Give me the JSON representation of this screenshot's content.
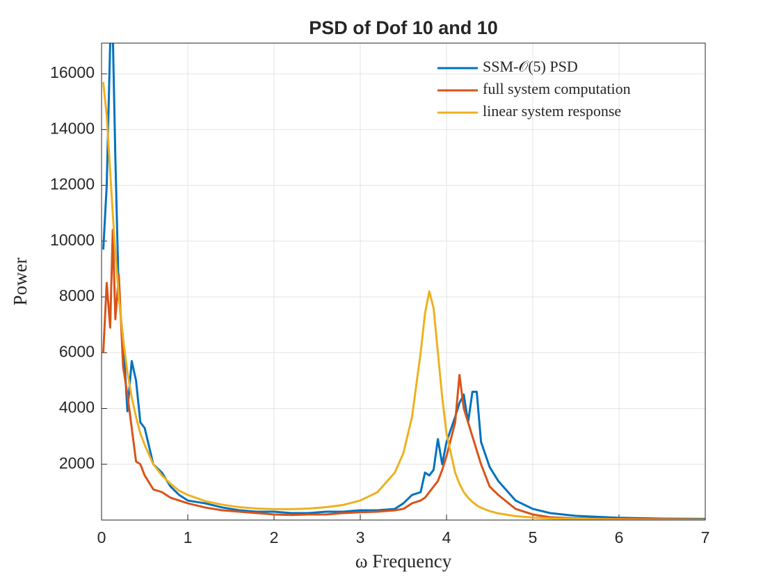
{
  "chart_data": {
    "type": "line",
    "title": "PSD of Dof 10 and 10",
    "x_label": "ω Frequency",
    "y_label": "Power",
    "x": [
      0.02,
      0.06,
      0.1,
      0.13,
      0.16,
      0.2,
      0.25,
      0.3,
      0.35,
      0.4,
      0.45,
      0.5,
      0.6,
      0.7,
      0.8,
      0.9,
      1.0,
      1.2,
      1.4,
      1.6,
      1.8,
      2.0,
      2.2,
      2.4,
      2.6,
      2.8,
      3.0,
      3.2,
      3.4,
      3.5,
      3.6,
      3.7,
      3.75,
      3.8,
      3.85,
      3.9,
      3.95,
      4.0,
      4.1,
      4.15,
      4.2,
      4.25,
      4.3,
      4.35,
      4.4,
      4.5,
      4.6,
      4.8,
      5.0,
      5.2,
      5.5,
      6.0,
      6.5,
      7.0
    ],
    "series": [
      {
        "name": "SSM-𝒪(5) PSD",
        "color": "#0072BD",
        "values": [
          9700,
          12000,
          17100,
          17500,
          13000,
          8000,
          6500,
          3900,
          5700,
          5000,
          3500,
          3300,
          2000,
          1700,
          1200,
          900,
          700,
          600,
          450,
          350,
          300,
          300,
          250,
          250,
          300,
          300,
          350,
          350,
          400,
          600,
          900,
          1000,
          1700,
          1600,
          1800,
          2900,
          2000,
          2800,
          3700,
          4200,
          4500,
          3500,
          4600,
          4600,
          2800,
          1900,
          1400,
          700,
          400,
          250,
          150,
          80,
          50,
          40
        ]
      },
      {
        "name": "full system computation",
        "color": "#D95319",
        "values": [
          6000,
          8500,
          6900,
          10400,
          7200,
          8800,
          5500,
          4500,
          3300,
          2100,
          2000,
          1600,
          1100,
          1000,
          800,
          700,
          600,
          450,
          350,
          300,
          250,
          200,
          180,
          200,
          200,
          250,
          280,
          300,
          350,
          400,
          600,
          700,
          800,
          1000,
          1200,
          1400,
          1800,
          2300,
          3500,
          5200,
          4000,
          3500,
          3000,
          2500,
          2000,
          1200,
          900,
          400,
          200,
          100,
          60,
          40,
          30,
          20
        ]
      },
      {
        "name": "linear system response",
        "color": "#EDB120",
        "values": [
          15700,
          14500,
          12500,
          11000,
          9600,
          8000,
          6500,
          5300,
          4400,
          3700,
          3100,
          2700,
          2000,
          1600,
          1300,
          1050,
          900,
          680,
          550,
          460,
          410,
          390,
          390,
          410,
          460,
          540,
          700,
          1000,
          1700,
          2400,
          3700,
          6000,
          7400,
          8200,
          7600,
          6000,
          4400,
          3100,
          1700,
          1300,
          1000,
          800,
          650,
          530,
          440,
          320,
          240,
          140,
          90,
          60,
          40,
          20,
          10,
          5
        ]
      }
    ],
    "xlim": [
      0,
      7
    ],
    "ylim": [
      0,
      17100
    ],
    "xticks": [
      0,
      1,
      2,
      3,
      4,
      5,
      6,
      7
    ],
    "yticks": [
      2000,
      4000,
      6000,
      8000,
      10000,
      12000,
      14000,
      16000
    ],
    "grid": true,
    "legend": "upper right"
  }
}
